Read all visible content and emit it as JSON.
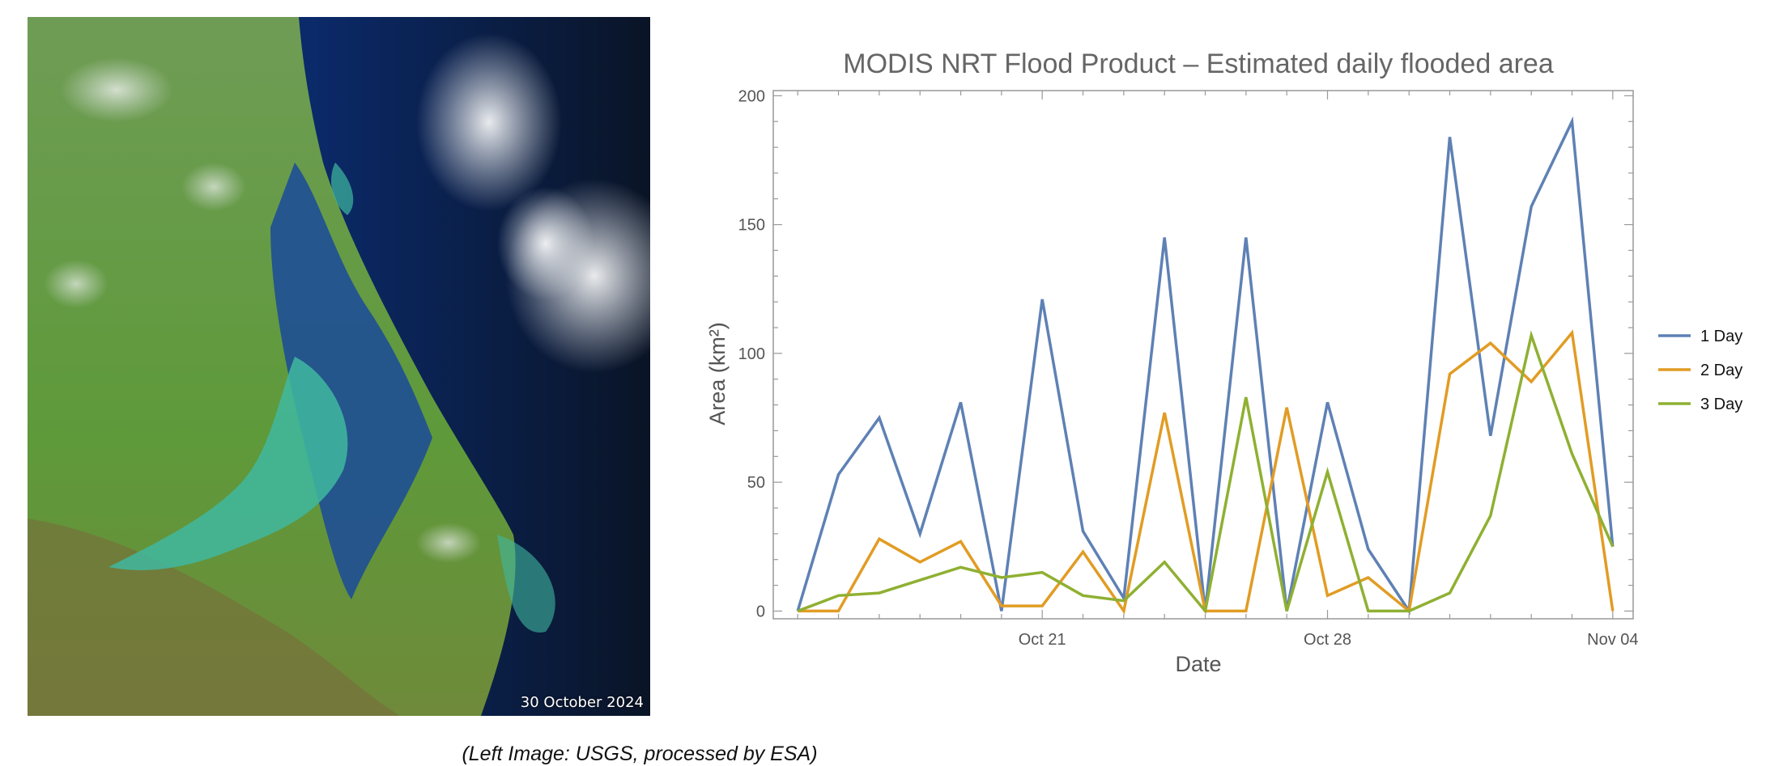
{
  "image": {
    "date_label": "30 October 2024",
    "colors": {
      "land": "#5e9a3a",
      "sea": "#0b2a6a",
      "deep_sea": "#0a1426",
      "flood": "#3fb8a0",
      "cloud": "#eef0f2"
    }
  },
  "caption": "(Left Image: USGS, processed by ESA)",
  "chart_data": {
    "type": "line",
    "title": "MODIS NRT Flood Product – Estimated daily flooded area",
    "xlabel": "Date",
    "ylabel": "Area (km²)",
    "x": [
      "Oct 15",
      "Oct 16",
      "Oct 17",
      "Oct 18",
      "Oct 19",
      "Oct 20",
      "Oct 21",
      "Oct 22",
      "Oct 23",
      "Oct 24",
      "Oct 25",
      "Oct 26",
      "Oct 27",
      "Oct 28",
      "Oct 29",
      "Oct 30",
      "Oct 31",
      "Nov 01",
      "Nov 02",
      "Nov 03",
      "Nov 04"
    ],
    "xticks": [
      "Oct 21",
      "Oct 28",
      "Nov 04"
    ],
    "yticks": [
      0,
      50,
      100,
      150,
      200
    ],
    "ylim": [
      -3,
      202
    ],
    "legend_position": "right",
    "grid": false,
    "series": [
      {
        "name": "1 Day",
        "color": "#5e81b5",
        "values": [
          0,
          53,
          75,
          30,
          81,
          0,
          121,
          31,
          5,
          145,
          0,
          145,
          0,
          81,
          24,
          0,
          184,
          68,
          157,
          190,
          25
        ]
      },
      {
        "name": "2 Day",
        "color": "#e19c24",
        "values": [
          0,
          0,
          28,
          19,
          27,
          2,
          2,
          23,
          0,
          77,
          0,
          0,
          79,
          6,
          13,
          0,
          92,
          104,
          89,
          108,
          0
        ]
      },
      {
        "name": "3 Day",
        "color": "#8fb032",
        "values": [
          0,
          6,
          7,
          12,
          17,
          13,
          15,
          6,
          4,
          19,
          0,
          83,
          0,
          54,
          0,
          0,
          7,
          37,
          107,
          61,
          25
        ]
      }
    ]
  }
}
